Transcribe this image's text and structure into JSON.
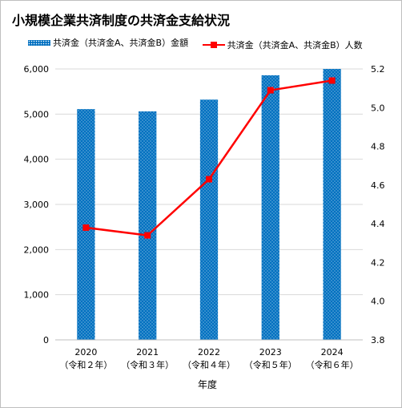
{
  "title": "小規模企業共済制度の共済金支給状況",
  "legend": {
    "bar_label": "共済金（共済金A、共済金B）金額",
    "line_label": "共済金（共済金A、共済金B）人数"
  },
  "colors": {
    "bar": "#0070c0",
    "line": "#ff0000",
    "grid": "#d9d9d9"
  },
  "chart_data": {
    "type": "bar",
    "categories": [
      "2020",
      "2021",
      "2022",
      "2023",
      "2024"
    ],
    "category_sublabels": [
      "（令和２年）",
      "（令和３年）",
      "（令和４年）",
      "（令和５年）",
      "（令和６年）"
    ],
    "xlabel": "年度",
    "ylabel": "",
    "ylim": [
      0,
      6000
    ],
    "y_ticks": [
      "0",
      "1,000",
      "2,000",
      "3,000",
      "4,000",
      "5,000",
      "6,000"
    ],
    "y2lim": [
      3.8,
      5.2
    ],
    "y2_ticks": [
      "3.8",
      "4.0",
      "4.2",
      "4.4",
      "4.6",
      "4.8",
      "5.0",
      "5.2"
    ],
    "grid": true,
    "legend_position": "top",
    "series": [
      {
        "name": "共済金（共済金A、共済金B）金額",
        "type": "bar",
        "axis": "left",
        "values": [
          5110,
          5060,
          5320,
          5860,
          6000
        ]
      },
      {
        "name": "共済金（共済金A、共済金B）人数",
        "type": "line",
        "axis": "right",
        "values": [
          4.38,
          4.34,
          4.63,
          5.09,
          5.14
        ]
      }
    ]
  }
}
